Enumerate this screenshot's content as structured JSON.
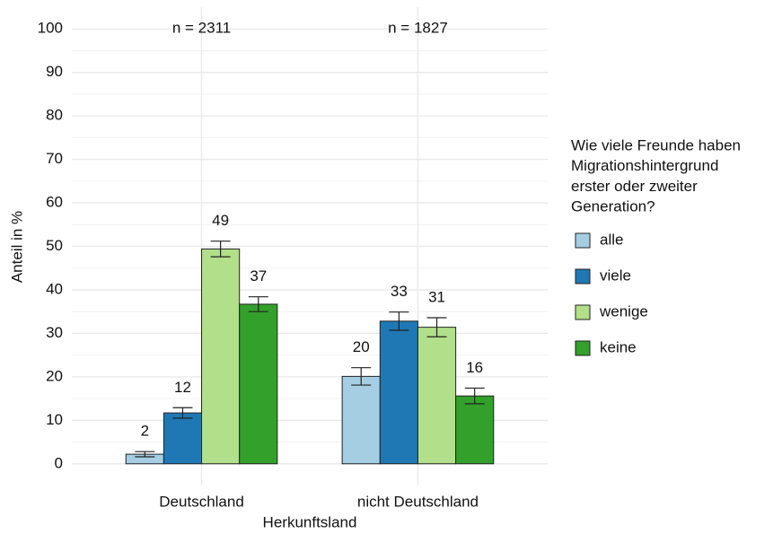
{
  "chart_data": {
    "type": "bar",
    "y_label": "Anteil in %",
    "x_label": "Herkunftsland",
    "categories": [
      "Deutschland",
      "nicht Deutschland"
    ],
    "annotations": [
      "n = 2311",
      "n = 1827"
    ],
    "legend_title": [
      "Wie viele Freunde haben",
      "Migrationshintergrund",
      "erster oder zweiter",
      "Generation?"
    ],
    "legend_position": "right",
    "grid": true,
    "ylim": [
      -5,
      105
    ],
    "yticks": [
      0,
      10,
      20,
      30,
      40,
      50,
      60,
      70,
      80,
      90,
      100
    ],
    "series": [
      {
        "name": "alle",
        "color": "#a6cee3",
        "values": [
          2.2,
          20.1
        ],
        "value_labels": [
          "2",
          "20"
        ],
        "errors": [
          0.6,
          2.0
        ]
      },
      {
        "name": "viele",
        "color": "#1f78b4",
        "values": [
          11.7,
          32.8
        ],
        "value_labels": [
          "12",
          "33"
        ],
        "errors": [
          1.2,
          2.1
        ]
      },
      {
        "name": "wenige",
        "color": "#b2df8a",
        "values": [
          49.4,
          31.4
        ],
        "value_labels": [
          "49",
          "31"
        ],
        "errors": [
          1.8,
          2.2
        ]
      },
      {
        "name": "keine",
        "color": "#33a02c",
        "values": [
          36.7,
          15.6
        ],
        "value_labels": [
          "37",
          "16"
        ],
        "errors": [
          1.7,
          1.8
        ]
      }
    ]
  }
}
